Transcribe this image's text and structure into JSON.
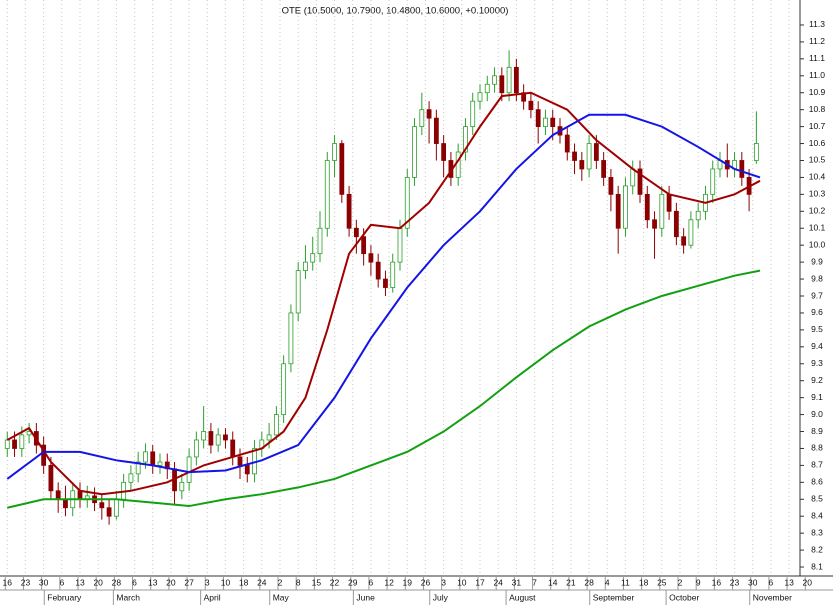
{
  "chart_data": {
    "type": "candlestick",
    "title": "OTE (10.5000, 10.7900, 10.4800, 10.6000, +0.10000)",
    "xlim": [
      -2,
      218
    ],
    "ylim": [
      8.05,
      11.35
    ],
    "xticks": [
      {
        "value": 0,
        "label": "16"
      },
      {
        "value": 5,
        "label": "23"
      },
      {
        "value": 10,
        "label": "30"
      },
      {
        "value": 15,
        "label": "6"
      },
      {
        "value": 20,
        "label": "13"
      },
      {
        "value": 25,
        "label": "20"
      },
      {
        "value": 30,
        "label": "28"
      },
      {
        "value": 35,
        "label": "6"
      },
      {
        "value": 40,
        "label": "13"
      },
      {
        "value": 45,
        "label": "20"
      },
      {
        "value": 50,
        "label": "27"
      },
      {
        "value": 55,
        "label": "3"
      },
      {
        "value": 60,
        "label": "10"
      },
      {
        "value": 65,
        "label": "18"
      },
      {
        "value": 70,
        "label": "24"
      },
      {
        "value": 75,
        "label": "2"
      },
      {
        "value": 80,
        "label": "8"
      },
      {
        "value": 85,
        "label": "15"
      },
      {
        "value": 90,
        "label": "22"
      },
      {
        "value": 95,
        "label": "29"
      },
      {
        "value": 100,
        "label": "6"
      },
      {
        "value": 105,
        "label": "12"
      },
      {
        "value": 110,
        "label": "19"
      },
      {
        "value": 115,
        "label": "26"
      },
      {
        "value": 120,
        "label": "3"
      },
      {
        "value": 125,
        "label": "10"
      },
      {
        "value": 130,
        "label": "17"
      },
      {
        "value": 135,
        "label": "24"
      },
      {
        "value": 140,
        "label": "31"
      },
      {
        "value": 145,
        "label": "7"
      },
      {
        "value": 150,
        "label": "14"
      },
      {
        "value": 155,
        "label": "21"
      },
      {
        "value": 160,
        "label": "28"
      },
      {
        "value": 165,
        "label": "4"
      },
      {
        "value": 170,
        "label": "11"
      },
      {
        "value": 175,
        "label": "18"
      },
      {
        "value": 180,
        "label": "25"
      },
      {
        "value": 185,
        "label": "2"
      },
      {
        "value": 190,
        "label": "9"
      },
      {
        "value": 195,
        "label": "16"
      },
      {
        "value": 200,
        "label": "23"
      },
      {
        "value": 205,
        "label": "30"
      },
      {
        "value": 210,
        "label": "6"
      },
      {
        "value": 215,
        "label": "13"
      },
      {
        "value": 220,
        "label": "20"
      }
    ],
    "month_ticks": [
      {
        "value": 11,
        "label": "February"
      },
      {
        "value": 30,
        "label": "March"
      },
      {
        "value": 54,
        "label": "April"
      },
      {
        "value": 73,
        "label": "May"
      },
      {
        "value": 96,
        "label": "June"
      },
      {
        "value": 117,
        "label": "July"
      },
      {
        "value": 138,
        "label": "August"
      },
      {
        "value": 161,
        "label": "September"
      },
      {
        "value": 182,
        "label": "October"
      },
      {
        "value": 205,
        "label": "November"
      }
    ],
    "yticks": [
      8.1,
      8.2,
      8.3,
      8.4,
      8.5,
      8.6,
      8.7,
      8.8,
      8.9,
      {
        "value": 9,
        "label": "9.0"
      },
      9.1,
      9.2,
      9.3,
      9.4,
      9.5,
      9.6,
      9.7,
      9.8,
      9.9,
      {
        "value": 10,
        "label": "10.0"
      },
      10.1,
      10.2,
      10.3,
      10.4,
      10.5,
      10.6,
      10.7,
      10.8,
      10.9,
      {
        "value": 11,
        "label": "11.0"
      },
      11.1,
      11.2,
      11.3
    ],
    "grid": true,
    "up_color": "#2ca02c",
    "down_color": "#8b0000",
    "candles": {
      "x": [
        0,
        2,
        4,
        6,
        8,
        10,
        12,
        14,
        16,
        18,
        20,
        22,
        24,
        26,
        28,
        30,
        32,
        34,
        36,
        38,
        40,
        42,
        44,
        46,
        48,
        50,
        52,
        54,
        56,
        58,
        60,
        62,
        64,
        66,
        68,
        70,
        72,
        74,
        76,
        78,
        80,
        82,
        84,
        86,
        88,
        90,
        92,
        94,
        96,
        98,
        100,
        102,
        104,
        106,
        108,
        110,
        112,
        114,
        116,
        118,
        120,
        122,
        124,
        126,
        128,
        130,
        132,
        134,
        136,
        138,
        140,
        142,
        144,
        146,
        148,
        150,
        152,
        154,
        156,
        158,
        160,
        162,
        164,
        166,
        168,
        170,
        172,
        174,
        176,
        178,
        180,
        182,
        184,
        186,
        188,
        190,
        192,
        194,
        196,
        198,
        200,
        202,
        204,
        206
      ],
      "open": [
        8.8,
        8.85,
        8.8,
        8.88,
        8.9,
        8.82,
        8.7,
        8.55,
        8.5,
        8.45,
        8.55,
        8.5,
        8.52,
        8.48,
        8.45,
        8.4,
        8.5,
        8.6,
        8.65,
        8.72,
        8.78,
        8.7,
        8.72,
        8.68,
        8.55,
        8.6,
        8.75,
        8.85,
        8.9,
        8.82,
        8.88,
        8.85,
        8.75,
        8.7,
        8.65,
        8.8,
        8.85,
        8.88,
        9.0,
        9.3,
        9.6,
        9.85,
        9.9,
        9.95,
        10.1,
        10.5,
        10.6,
        10.3,
        10.1,
        10.05,
        9.95,
        9.9,
        9.8,
        9.75,
        9.9,
        10.1,
        10.4,
        10.7,
        10.8,
        10.75,
        10.6,
        10.5,
        10.4,
        10.55,
        10.7,
        10.85,
        10.9,
        10.95,
        11.0,
        10.9,
        11.05,
        10.9,
        10.85,
        10.8,
        10.7,
        10.75,
        10.7,
        10.65,
        10.55,
        10.5,
        10.45,
        10.6,
        10.5,
        10.4,
        10.3,
        10.1,
        10.35,
        10.45,
        10.3,
        10.15,
        10.1,
        10.3,
        10.2,
        10.05,
        10.0,
        10.15,
        10.2,
        10.3,
        10.45,
        10.5,
        10.45,
        10.5,
        10.4,
        10.5
      ],
      "high": [
        8.9,
        8.9,
        8.93,
        8.95,
        8.95,
        8.87,
        8.75,
        8.6,
        8.58,
        8.6,
        8.6,
        8.58,
        8.57,
        8.53,
        8.5,
        8.55,
        8.65,
        8.7,
        8.78,
        8.83,
        8.82,
        8.77,
        8.77,
        8.72,
        8.65,
        8.8,
        8.9,
        9.05,
        8.95,
        8.92,
        8.92,
        8.9,
        8.8,
        8.75,
        8.85,
        8.9,
        8.95,
        9.05,
        9.35,
        9.65,
        9.9,
        10.0,
        10.05,
        10.2,
        10.55,
        10.65,
        10.62,
        10.35,
        10.15,
        10.1,
        10.0,
        9.95,
        9.85,
        9.95,
        10.15,
        10.45,
        10.75,
        10.9,
        10.85,
        10.8,
        10.65,
        10.55,
        10.6,
        10.75,
        10.9,
        10.95,
        11.0,
        11.05,
        11.05,
        11.15,
        11.1,
        10.95,
        10.9,
        10.85,
        10.8,
        10.8,
        10.75,
        10.7,
        10.6,
        10.55,
        10.65,
        10.65,
        10.55,
        10.45,
        10.35,
        10.4,
        10.5,
        10.5,
        10.35,
        10.2,
        10.35,
        10.35,
        10.25,
        10.1,
        10.2,
        10.25,
        10.35,
        10.5,
        10.55,
        10.6,
        10.55,
        10.55,
        10.45,
        10.79
      ],
      "low": [
        8.75,
        8.75,
        8.75,
        8.83,
        8.77,
        8.65,
        8.5,
        8.42,
        8.4,
        8.4,
        8.45,
        8.45,
        8.43,
        8.38,
        8.35,
        8.38,
        8.45,
        8.55,
        8.6,
        8.68,
        8.65,
        8.65,
        8.62,
        8.47,
        8.5,
        8.55,
        8.7,
        8.8,
        8.77,
        8.78,
        8.8,
        8.7,
        8.62,
        8.6,
        8.6,
        8.75,
        8.8,
        8.85,
        8.95,
        9.25,
        9.55,
        9.8,
        9.85,
        9.9,
        10.05,
        10.4,
        10.25,
        10.05,
        9.95,
        9.88,
        9.82,
        9.75,
        9.7,
        9.72,
        9.85,
        10.05,
        10.35,
        10.65,
        10.6,
        10.5,
        10.4,
        10.35,
        10.35,
        10.5,
        10.65,
        10.8,
        10.85,
        10.9,
        10.85,
        10.85,
        10.85,
        10.8,
        10.75,
        10.6,
        10.65,
        10.62,
        10.6,
        10.5,
        10.42,
        10.38,
        10.4,
        10.45,
        10.35,
        10.2,
        9.95,
        10.05,
        10.3,
        10.25,
        10.1,
        9.92,
        10.05,
        10.15,
        10.0,
        9.95,
        9.98,
        10.1,
        10.15,
        10.25,
        10.4,
        10.4,
        10.4,
        10.35,
        10.2,
        10.48
      ],
      "close": [
        8.85,
        8.8,
        8.88,
        8.9,
        8.82,
        8.7,
        8.55,
        8.5,
        8.45,
        8.55,
        8.5,
        8.52,
        8.48,
        8.45,
        8.4,
        8.5,
        8.6,
        8.65,
        8.72,
        8.78,
        8.7,
        8.72,
        8.68,
        8.55,
        8.6,
        8.75,
        8.85,
        8.9,
        8.82,
        8.88,
        8.85,
        8.75,
        8.7,
        8.65,
        8.8,
        8.85,
        8.88,
        9.0,
        9.3,
        9.6,
        9.85,
        9.9,
        9.95,
        10.1,
        10.5,
        10.6,
        10.3,
        10.1,
        10.05,
        9.95,
        9.9,
        9.8,
        9.75,
        9.9,
        10.1,
        10.4,
        10.7,
        10.8,
        10.75,
        10.6,
        10.5,
        10.4,
        10.55,
        10.7,
        10.85,
        10.9,
        10.95,
        11.0,
        10.9,
        11.05,
        10.9,
        10.85,
        10.8,
        10.7,
        10.75,
        10.7,
        10.65,
        10.55,
        10.5,
        10.45,
        10.6,
        10.5,
        10.4,
        10.3,
        10.1,
        10.35,
        10.45,
        10.3,
        10.15,
        10.1,
        10.3,
        10.2,
        10.05,
        10.0,
        10.15,
        10.2,
        10.3,
        10.45,
        10.5,
        10.45,
        10.5,
        10.4,
        10.3,
        10.6
      ]
    },
    "series": [
      {
        "color": "#a00000",
        "x": [
          0,
          6,
          12,
          20,
          26,
          34,
          44,
          54,
          62,
          70,
          76,
          82,
          88,
          94,
          100,
          108,
          116,
          124,
          130,
          136,
          144,
          154,
          162,
          172,
          182,
          192,
          200,
          207
        ],
        "values": [
          8.85,
          8.92,
          8.72,
          8.55,
          8.53,
          8.55,
          8.6,
          8.7,
          8.75,
          8.8,
          8.9,
          9.1,
          9.5,
          9.95,
          10.12,
          10.1,
          10.25,
          10.5,
          10.7,
          10.88,
          10.9,
          10.8,
          10.62,
          10.45,
          10.3,
          10.25,
          10.3,
          10.38
        ]
      },
      {
        "color": "#1414e6",
        "x": [
          0,
          10,
          20,
          30,
          40,
          50,
          60,
          70,
          80,
          90,
          100,
          110,
          120,
          130,
          140,
          150,
          160,
          170,
          180,
          190,
          200,
          207
        ],
        "values": [
          8.62,
          8.78,
          8.78,
          8.73,
          8.7,
          8.66,
          8.67,
          8.73,
          8.82,
          9.1,
          9.45,
          9.75,
          10.0,
          10.2,
          10.45,
          10.65,
          10.77,
          10.77,
          10.7,
          10.58,
          10.45,
          10.4
        ]
      },
      {
        "color": "#12a012",
        "x": [
          0,
          10,
          20,
          30,
          40,
          50,
          60,
          70,
          80,
          90,
          100,
          110,
          120,
          130,
          140,
          150,
          160,
          170,
          180,
          190,
          200,
          207
        ],
        "values": [
          8.45,
          8.5,
          8.5,
          8.5,
          8.48,
          8.46,
          8.5,
          8.53,
          8.57,
          8.62,
          8.7,
          8.78,
          8.9,
          9.05,
          9.22,
          9.38,
          9.52,
          9.62,
          9.7,
          9.76,
          9.82,
          9.85
        ]
      }
    ]
  }
}
